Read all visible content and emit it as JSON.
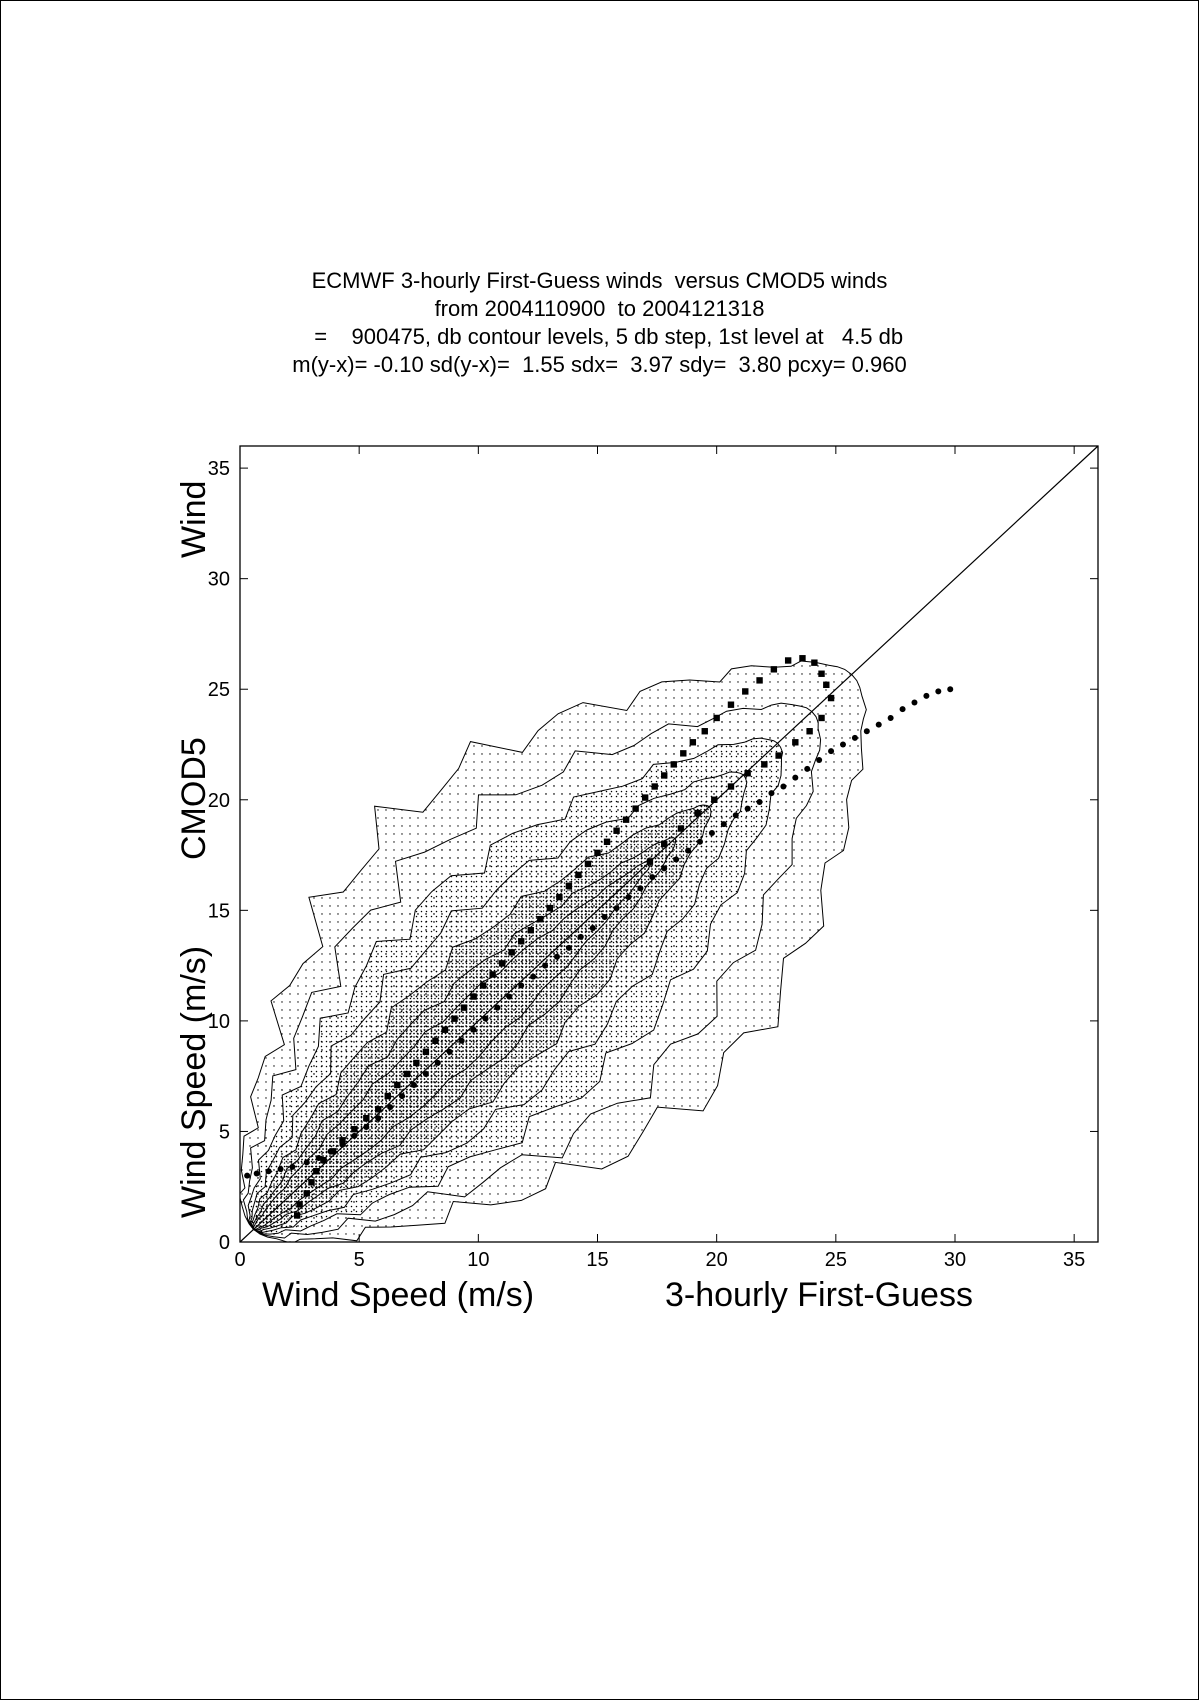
{
  "title_lines": [
    "ECMWF 3-hourly First-Guess winds  versus CMOD5 winds",
    "from 2004110900  to 2004121318",
    "   =    900475, db contour levels, 5 db step, 1st level at   4.5 db",
    "m(y-x)= -0.10 sd(y-x)=  1.55 sdx=  3.97 sdy=  3.80 pcxy= 0.960"
  ],
  "chart_data": {
    "type": "scatter",
    "xlabel_left": "Wind Speed (m/s)",
    "xlabel_right": "3-hourly First-Guess",
    "ylabel_lower": "Wind Speed (m/s)",
    "ylabel_middle": "CMOD5",
    "ylabel_upper": "Wind",
    "xlim": [
      0,
      36
    ],
    "ylim": [
      0,
      36
    ],
    "x_ticks": [
      0,
      5,
      10,
      15,
      20,
      25,
      30,
      35
    ],
    "y_ticks": [
      0,
      5,
      10,
      15,
      20,
      25,
      30,
      35
    ],
    "x_tick_labels": [
      "0",
      "5",
      "10",
      "15",
      "20",
      "25",
      "30",
      "35"
    ],
    "y_tick_labels": [
      "0",
      "5",
      "10",
      "15",
      "20",
      "25",
      "30",
      "35"
    ],
    "diagonal": [
      [
        0,
        0
      ],
      [
        36,
        36
      ]
    ],
    "series": [
      {
        "marker": "square",
        "points": [
          [
            2.4,
            1.2
          ],
          [
            2.5,
            1.7
          ],
          [
            2.8,
            2.2
          ],
          [
            3.0,
            2.7
          ],
          [
            3.2,
            3.2
          ],
          [
            3.5,
            3.7
          ],
          [
            3.9,
            4.1
          ],
          [
            4.3,
            4.6
          ],
          [
            4.8,
            5.1
          ],
          [
            5.3,
            5.6
          ],
          [
            5.8,
            6.0
          ],
          [
            6.2,
            6.6
          ],
          [
            6.6,
            7.1
          ],
          [
            7.0,
            7.6
          ],
          [
            7.4,
            8.1
          ],
          [
            7.8,
            8.6
          ],
          [
            8.2,
            9.1
          ],
          [
            8.6,
            9.6
          ],
          [
            9.0,
            10.1
          ],
          [
            9.4,
            10.6
          ],
          [
            9.8,
            11.1
          ],
          [
            10.2,
            11.6
          ],
          [
            10.6,
            12.1
          ],
          [
            11.0,
            12.6
          ],
          [
            11.4,
            13.1
          ],
          [
            11.8,
            13.6
          ],
          [
            12.2,
            14.1
          ],
          [
            12.6,
            14.6
          ],
          [
            13.0,
            15.1
          ],
          [
            13.4,
            15.6
          ],
          [
            13.8,
            16.1
          ],
          [
            14.2,
            16.6
          ],
          [
            14.6,
            17.1
          ],
          [
            15.0,
            17.6
          ],
          [
            15.4,
            18.1
          ],
          [
            15.8,
            18.6
          ],
          [
            16.2,
            19.1
          ],
          [
            16.6,
            19.6
          ],
          [
            17.0,
            20.1
          ],
          [
            17.4,
            20.6
          ],
          [
            17.8,
            21.1
          ],
          [
            18.2,
            21.6
          ],
          [
            18.6,
            22.1
          ],
          [
            19.0,
            22.6
          ],
          [
            19.5,
            23.1
          ],
          [
            20.0,
            23.7
          ],
          [
            20.6,
            24.3
          ],
          [
            21.2,
            24.9
          ],
          [
            21.8,
            25.4
          ],
          [
            22.4,
            25.9
          ],
          [
            23.0,
            26.3
          ],
          [
            23.6,
            26.4
          ],
          [
            24.1,
            26.2
          ],
          [
            24.4,
            25.7
          ],
          [
            24.6,
            25.2
          ],
          [
            24.8,
            24.6
          ],
          [
            24.4,
            23.7
          ],
          [
            23.9,
            23.1
          ],
          [
            23.3,
            22.6
          ],
          [
            22.6,
            22.0
          ],
          [
            22.0,
            21.6
          ],
          [
            21.3,
            21.2
          ],
          [
            20.6,
            20.6
          ],
          [
            19.9,
            20.0
          ],
          [
            19.2,
            19.4
          ],
          [
            18.5,
            18.7
          ],
          [
            17.8,
            18.0
          ],
          [
            17.2,
            17.2
          ]
        ]
      },
      {
        "marker": "circle",
        "points": [
          [
            0.3,
            3.0
          ],
          [
            0.7,
            3.1
          ],
          [
            1.2,
            3.2
          ],
          [
            1.7,
            3.3
          ],
          [
            2.2,
            3.4
          ],
          [
            2.8,
            3.6
          ],
          [
            3.3,
            3.8
          ],
          [
            3.8,
            4.1
          ],
          [
            4.3,
            4.4
          ],
          [
            4.8,
            4.8
          ],
          [
            5.3,
            5.2
          ],
          [
            5.8,
            5.6
          ],
          [
            6.3,
            6.1
          ],
          [
            6.8,
            6.6
          ],
          [
            7.3,
            7.1
          ],
          [
            7.8,
            7.6
          ],
          [
            8.3,
            8.1
          ],
          [
            8.8,
            8.6
          ],
          [
            9.3,
            9.1
          ],
          [
            9.8,
            9.6
          ],
          [
            10.3,
            10.1
          ],
          [
            10.8,
            10.6
          ],
          [
            11.3,
            11.1
          ],
          [
            11.8,
            11.6
          ],
          [
            12.3,
            12.0
          ],
          [
            12.8,
            12.5
          ],
          [
            13.3,
            12.9
          ],
          [
            13.8,
            13.3
          ],
          [
            14.3,
            13.8
          ],
          [
            14.8,
            14.2
          ],
          [
            15.3,
            14.7
          ],
          [
            15.8,
            15.1
          ],
          [
            16.3,
            15.6
          ],
          [
            16.8,
            16.0
          ],
          [
            17.3,
            16.5
          ],
          [
            17.8,
            16.9
          ],
          [
            18.3,
            17.3
          ],
          [
            18.8,
            17.7
          ],
          [
            19.3,
            18.1
          ],
          [
            19.8,
            18.5
          ],
          [
            20.3,
            18.9
          ],
          [
            20.8,
            19.3
          ],
          [
            21.3,
            19.6
          ],
          [
            21.8,
            19.9
          ],
          [
            22.3,
            20.3
          ],
          [
            22.8,
            20.6
          ],
          [
            23.3,
            21.0
          ],
          [
            23.8,
            21.4
          ],
          [
            24.3,
            21.8
          ],
          [
            24.8,
            22.2
          ],
          [
            25.3,
            22.5
          ],
          [
            25.8,
            22.8
          ],
          [
            26.3,
            23.1
          ],
          [
            26.8,
            23.4
          ],
          [
            27.3,
            23.7
          ],
          [
            27.8,
            24.1
          ],
          [
            28.3,
            24.4
          ],
          [
            28.8,
            24.7
          ],
          [
            29.3,
            24.9
          ],
          [
            29.8,
            25.0
          ]
        ]
      }
    ]
  }
}
